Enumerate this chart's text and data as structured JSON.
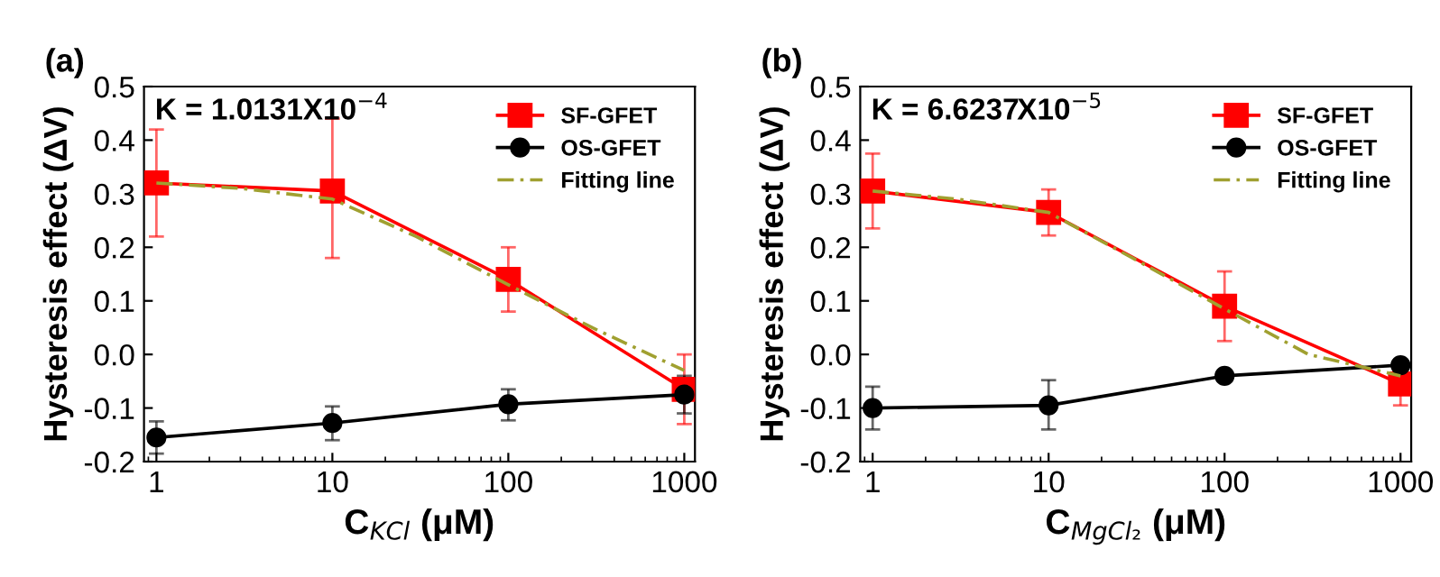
{
  "chart_data": [
    {
      "type": "line",
      "title": "(a)",
      "xlabel": "C$_{KCl}$ (μM)",
      "ylabel": "Hysteresis effect (ΔV)",
      "log": "x",
      "x": [
        1,
        10,
        100,
        1000
      ],
      "xlim": [
        0.85,
        1150
      ],
      "xticks": [
        1,
        10,
        100,
        1000
      ],
      "ylim": [
        -0.2,
        0.5
      ],
      "yticks": [
        {
          "value": -0.2,
          "label": "-0.2"
        },
        {
          "value": -0.1,
          "label": "-0.1"
        },
        {
          "value": 0,
          "label": "0.0"
        },
        0.1,
        0.2,
        0.3,
        0.4,
        0.5
      ],
      "legend": "top right",
      "grid": false,
      "annotations": [
        "K = 1.0131X10$^{−4}$"
      ],
      "series": [
        {
          "name": "SF-GFET",
          "color": "#ff0000",
          "marker": "square",
          "line_style": "solid",
          "values": [
            0.32,
            0.305,
            0.14,
            -0.065
          ],
          "errors": [
            [
              0.22,
              0.42
            ],
            [
              0.18,
              0.44
            ],
            [
              0.08,
              0.2
            ],
            [
              -0.13,
              0.0
            ]
          ]
        },
        {
          "name": "OS-GFET",
          "color": "#000000",
          "marker": "circle",
          "line_style": "solid",
          "values": [
            -0.155,
            -0.128,
            -0.093,
            -0.075
          ],
          "errors": [
            [
              -0.185,
              -0.125
            ],
            [
              -0.16,
              -0.097
            ],
            [
              -0.123,
              -0.065
            ],
            [
              -0.11,
              -0.04
            ]
          ]
        },
        {
          "name": "Fitting line",
          "color": "#a0a030",
          "marker": "none",
          "line_style": "dashed",
          "x": [
            1,
            3,
            10,
            30,
            100,
            300,
            1000
          ],
          "values": [
            0.32,
            0.31,
            0.29,
            0.22,
            0.13,
            0.05,
            -0.03
          ]
        }
      ]
    },
    {
      "type": "line",
      "title": "(b)",
      "xlabel": "C$_{MgCl₂}$ (μM)",
      "ylabel": "Hysteresis effect (ΔV)",
      "log": "x",
      "x": [
        1,
        10,
        100,
        1000
      ],
      "xlim": [
        0.85,
        1150
      ],
      "xticks": [
        1,
        10,
        100,
        1000
      ],
      "ylim": [
        -0.2,
        0.5
      ],
      "yticks": [
        {
          "value": -0.2,
          "label": "-0.2"
        },
        {
          "value": -0.1,
          "label": "-0.1"
        },
        {
          "value": 0,
          "label": "0.0"
        },
        0.1,
        0.2,
        0.3,
        0.4,
        0.5
      ],
      "legend": "top right",
      "grid": false,
      "annotations": [
        "K = 6.6237X10$^{−5}$"
      ],
      "series": [
        {
          "name": "SF-GFET",
          "color": "#ff0000",
          "marker": "square",
          "line_style": "solid",
          "values": [
            0.305,
            0.265,
            0.09,
            -0.055
          ],
          "errors": [
            [
              0.235,
              0.375
            ],
            [
              0.222,
              0.308
            ],
            [
              0.025,
              0.155
            ],
            [
              -0.095,
              -0.055
            ]
          ]
        },
        {
          "name": "OS-GFET",
          "color": "#000000",
          "marker": "circle",
          "line_style": "solid",
          "values": [
            -0.1,
            -0.095,
            -0.04,
            -0.02
          ],
          "errors": [
            [
              -0.14,
              -0.06
            ],
            [
              -0.14,
              -0.048
            ],
            [
              -0.05,
              -0.03
            ],
            [
              -0.03,
              -0.01
            ]
          ]
        },
        {
          "name": "Fitting line",
          "color": "#a0a030",
          "marker": "none",
          "line_style": "dashed",
          "x": [
            1,
            3,
            10,
            30,
            100,
            300,
            1000
          ],
          "values": [
            0.305,
            0.29,
            0.265,
            0.18,
            0.085,
            0.0,
            -0.04
          ]
        }
      ]
    }
  ]
}
